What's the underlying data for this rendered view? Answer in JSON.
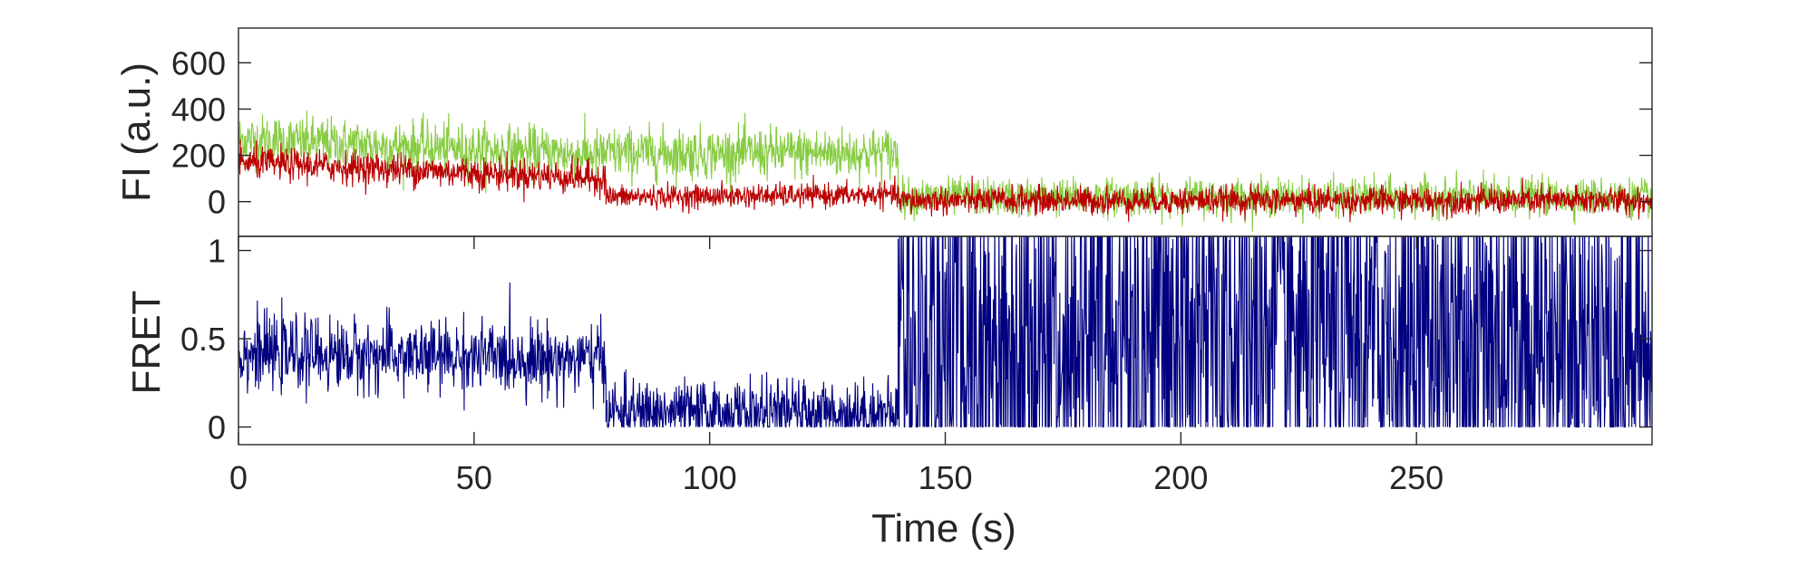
{
  "chart_data": [
    {
      "type": "line",
      "panel": "top",
      "ylabel": "FI (a.u.)",
      "ylim": [
        -150,
        750
      ],
      "yticks": [
        0,
        200,
        400,
        600
      ],
      "ytick_labels": [
        "0",
        "200",
        "400",
        "600"
      ],
      "xlim": [
        0,
        300
      ],
      "grid": false,
      "legend": "none",
      "series": [
        {
          "color": "#88cc44",
          "description_values": "donor-like green trace",
          "segments": [
            {
              "t_start": 0,
              "t_end": 78,
              "level_start": 270,
              "level_end": 200,
              "noise": 55
            },
            {
              "t_start": 78,
              "t_end": 140,
              "level_start": 210,
              "level_end": 210,
              "noise": 55
            },
            {
              "t_start": 140,
              "t_end": 300,
              "level_start": 20,
              "level_end": 20,
              "noise": 40
            }
          ]
        },
        {
          "color": "#bb0000",
          "segments": [
            {
              "t_start": 0,
              "t_end": 78,
              "level_start": 170,
              "level_end": 100,
              "noise": 35
            },
            {
              "t_start": 78,
              "t_end": 140,
              "level_start": 20,
              "level_end": 30,
              "noise": 25
            },
            {
              "t_start": 140,
              "t_end": 300,
              "level_start": 5,
              "level_end": 5,
              "noise": 30
            }
          ]
        }
      ]
    },
    {
      "type": "line",
      "panel": "bottom",
      "ylabel": "FRET",
      "xlabel": "Time (s)",
      "ylim": [
        -0.1,
        1.08
      ],
      "yticks": [
        0,
        0.5,
        1
      ],
      "ytick_labels": [
        "0",
        "0.5",
        "1"
      ],
      "xlim": [
        0,
        300
      ],
      "xticks": [
        0,
        50,
        100,
        150,
        200,
        250
      ],
      "xtick_labels": [
        "0",
        "50",
        "100",
        "150",
        "200",
        "250"
      ],
      "grid": false,
      "legend": "none",
      "series": [
        {
          "color": "#000080",
          "segments": [
            {
              "t_start": 0,
              "t_end": 78,
              "level_start": 0.42,
              "level_end": 0.38,
              "noise": 0.1
            },
            {
              "t_start": 78,
              "t_end": 140,
              "level_start": 0.08,
              "level_end": 0.08,
              "noise": 0.09
            },
            {
              "t_start": 140,
              "t_end": 300,
              "level_start": 0.5,
              "level_end": 0.5,
              "noise": 0.7
            }
          ]
        }
      ]
    }
  ]
}
